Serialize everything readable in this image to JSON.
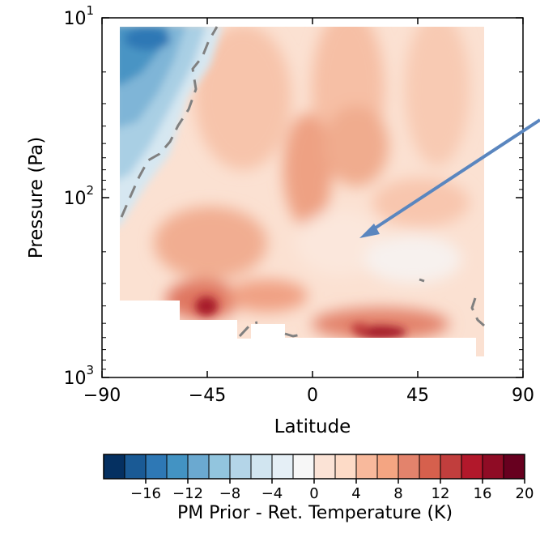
{
  "chart_data": {
    "type": "heatmap",
    "title": "",
    "xlabel": "Latitude",
    "ylabel": "Pressure (Pa)",
    "xlim": [
      -90,
      90
    ],
    "ylim_pressure": [
      1000,
      10
    ],
    "y_scale": "log",
    "x_ticks": [
      -90,
      -45,
      0,
      45,
      90
    ],
    "x_tick_labels": [
      "−90",
      "−45",
      "0",
      "45",
      "90"
    ],
    "y_ticks": [
      {
        "value": 10,
        "base": "10",
        "exp": "1"
      },
      {
        "value": 100,
        "base": "10",
        "exp": "2"
      },
      {
        "value": 1000,
        "base": "10",
        "exp": "3"
      }
    ],
    "grid": false,
    "colorbar": {
      "label": "PM Prior - Ret. Temperature (K)",
      "range": [
        -20,
        20
      ],
      "step": 2,
      "tick_values": [
        -16,
        -12,
        -8,
        -4,
        0,
        4,
        8,
        12,
        16,
        20
      ],
      "tick_labels": [
        "−16",
        "−12",
        "−8",
        "−4",
        "0",
        "4",
        "8",
        "12",
        "16",
        "20"
      ],
      "colors": [
        "#053061",
        "#1a5a95",
        "#2e78b5",
        "#4393c3",
        "#6ba9d0",
        "#92c5de",
        "#b4d5e8",
        "#d1e5f0",
        "#e5eff6",
        "#f7f7f7",
        "#fbe3d6",
        "#fddbc7",
        "#f8b99c",
        "#f4a582",
        "#e3836c",
        "#d6604d",
        "#c13e3d",
        "#b2182b",
        "#8f0c25",
        "#67001f"
      ]
    },
    "note_arrow": true,
    "data_region": {
      "lat_min": -83,
      "lat_max": 73,
      "p_top": 10,
      "p_bottom": 1000
    }
  }
}
